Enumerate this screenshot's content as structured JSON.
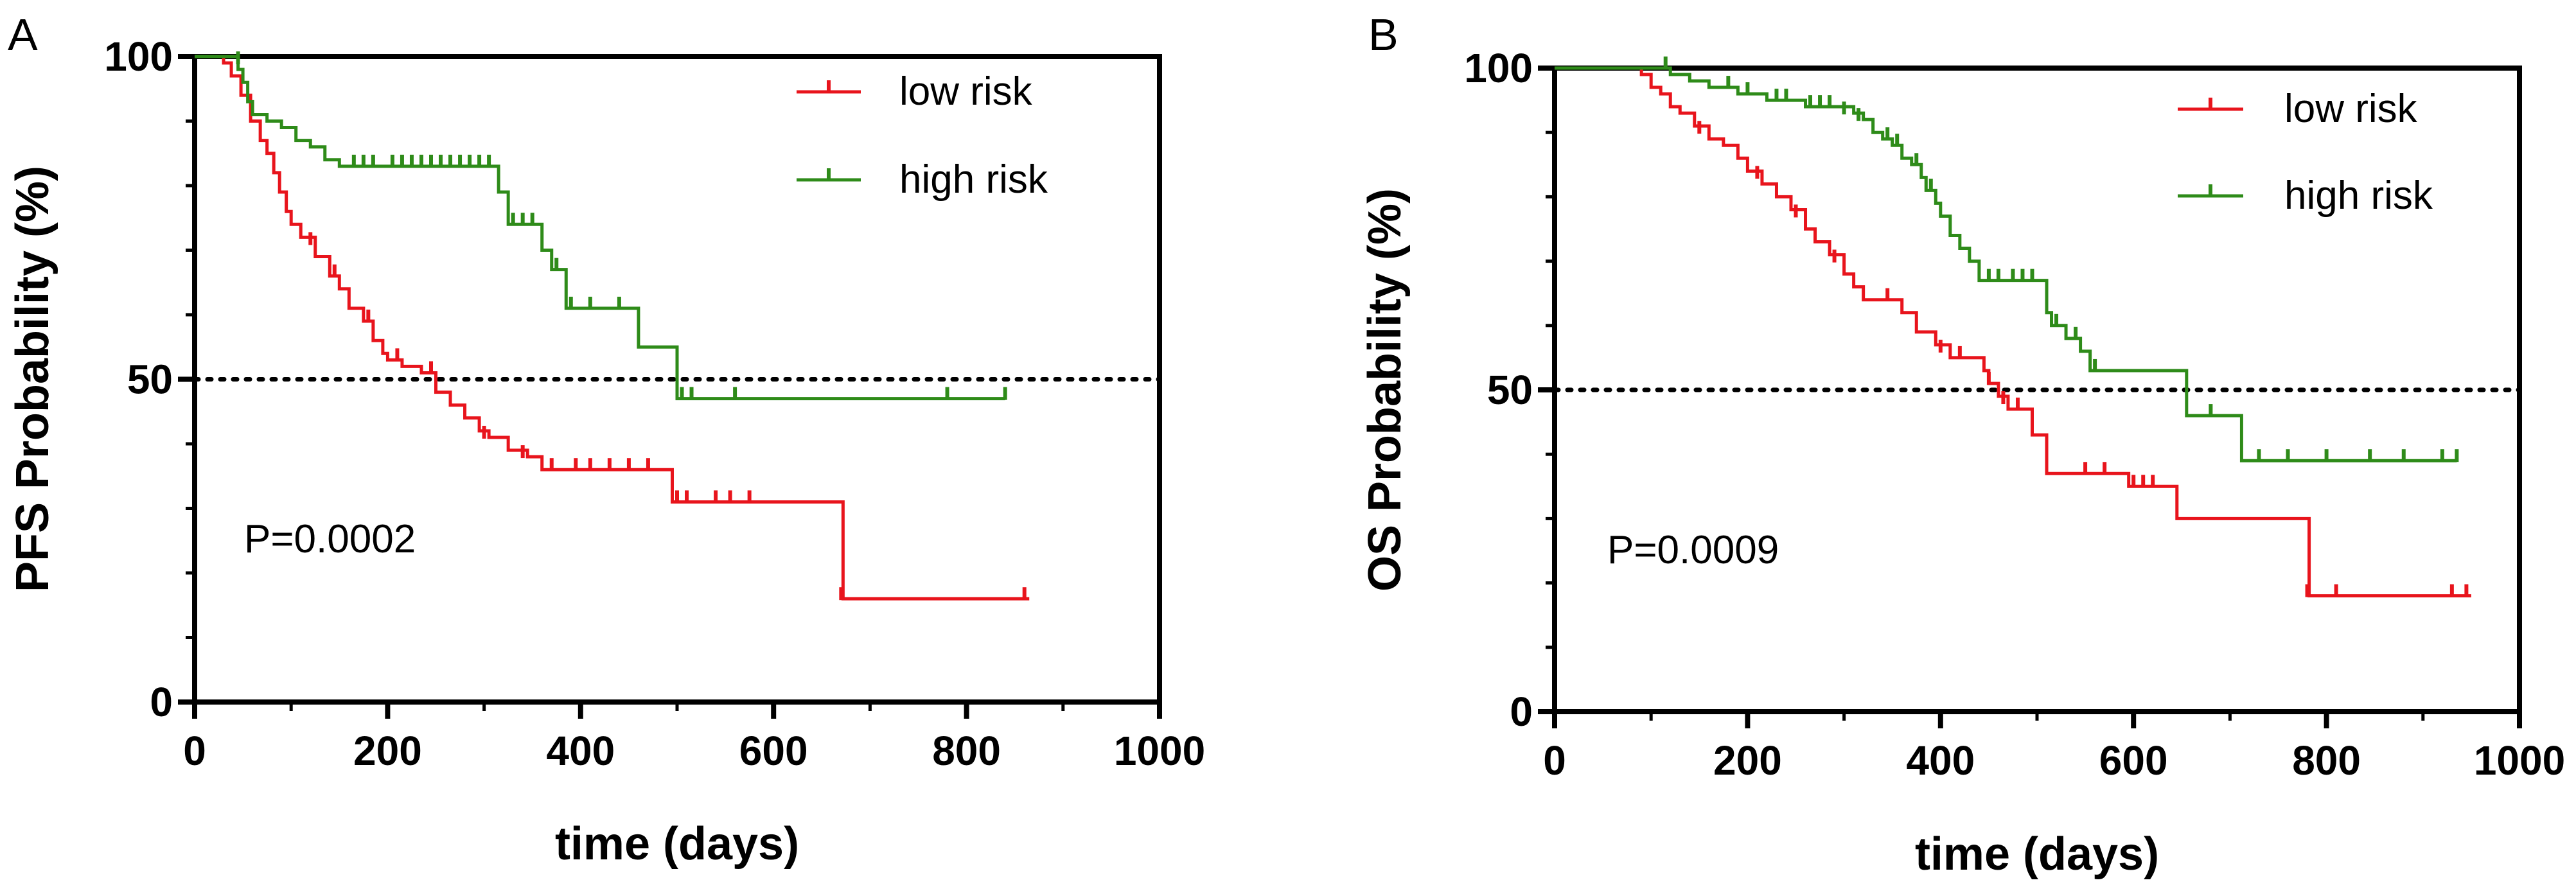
{
  "chart_data": [
    {
      "panel_label": "A",
      "type": "line",
      "subtype": "kaplan-meier",
      "title": "",
      "xlabel": "time (days)",
      "ylabel": "PFS Probability (%)",
      "xlim": [
        0,
        1000
      ],
      "ylim": [
        0,
        100
      ],
      "xticks": [
        "0",
        "200",
        "400",
        "600",
        "800",
        "1000"
      ],
      "yticks": [
        "0",
        "50",
        "100"
      ],
      "xtick_values": [
        0,
        200,
        400,
        600,
        800,
        1000
      ],
      "ytick_values": [
        0,
        50,
        100
      ],
      "reference_line": 50,
      "annotation": "P=0.0002",
      "legend_position": "top-right",
      "series": [
        {
          "name": "low risk",
          "color": "#e8141c",
          "steps": [
            [
              0,
              100
            ],
            [
              25,
              100
            ],
            [
              30,
              99
            ],
            [
              38,
              97
            ],
            [
              48,
              94
            ],
            [
              58,
              90
            ],
            [
              68,
              87
            ],
            [
              75,
              85
            ],
            [
              82,
              82
            ],
            [
              88,
              79
            ],
            [
              95,
              76
            ],
            [
              100,
              74
            ],
            [
              110,
              72
            ],
            [
              125,
              69
            ],
            [
              140,
              66
            ],
            [
              150,
              64
            ],
            [
              160,
              61
            ],
            [
              175,
              59
            ],
            [
              185,
              56
            ],
            [
              195,
              54
            ],
            [
              200,
              53
            ],
            [
              215,
              52
            ],
            [
              235,
              51
            ],
            [
              250,
              48
            ],
            [
              265,
              46
            ],
            [
              280,
              44
            ],
            [
              295,
              42
            ],
            [
              305,
              41
            ],
            [
              325,
              39
            ],
            [
              345,
              38
            ],
            [
              360,
              36
            ],
            [
              400,
              36
            ],
            [
              490,
              36
            ],
            [
              495,
              31
            ],
            [
              670,
              31
            ],
            [
              672,
              16
            ],
            [
              865,
              16
            ]
          ],
          "censors": [
            [
              120,
              71
            ],
            [
              145,
              66
            ],
            [
              180,
              59
            ],
            [
              210,
              53
            ],
            [
              245,
              51
            ],
            [
              300,
              41
            ],
            [
              340,
              38
            ],
            [
              370,
              36
            ],
            [
              395,
              36
            ],
            [
              410,
              36
            ],
            [
              430,
              36
            ],
            [
              450,
              36
            ],
            [
              470,
              36
            ],
            [
              500,
              31
            ],
            [
              510,
              31
            ],
            [
              540,
              31
            ],
            [
              555,
              31
            ],
            [
              575,
              31
            ],
            [
              670,
              16
            ],
            [
              860,
              16
            ]
          ]
        },
        {
          "name": "high risk",
          "color": "#2e8b19",
          "steps": [
            [
              0,
              100
            ],
            [
              40,
              100
            ],
            [
              45,
              98
            ],
            [
              50,
              96
            ],
            [
              55,
              93
            ],
            [
              60,
              91
            ],
            [
              75,
              90
            ],
            [
              90,
              89
            ],
            [
              105,
              87
            ],
            [
              120,
              86
            ],
            [
              135,
              84
            ],
            [
              150,
              83
            ],
            [
              200,
              83
            ],
            [
              260,
              83
            ],
            [
              310,
              83
            ],
            [
              315,
              79
            ],
            [
              325,
              74
            ],
            [
              355,
              74
            ],
            [
              360,
              70
            ],
            [
              370,
              67
            ],
            [
              385,
              61
            ],
            [
              455,
              61
            ],
            [
              460,
              55
            ],
            [
              495,
              55
            ],
            [
              500,
              47
            ],
            [
              840,
              47
            ]
          ],
          "censors": [
            [
              45,
              99
            ],
            [
              165,
              83
            ],
            [
              175,
              83
            ],
            [
              185,
              83
            ],
            [
              205,
              83
            ],
            [
              215,
              83
            ],
            [
              225,
              83
            ],
            [
              235,
              83
            ],
            [
              245,
              83
            ],
            [
              255,
              83
            ],
            [
              265,
              83
            ],
            [
              275,
              83
            ],
            [
              285,
              83
            ],
            [
              295,
              83
            ],
            [
              305,
              83
            ],
            [
              330,
              74
            ],
            [
              340,
              74
            ],
            [
              350,
              74
            ],
            [
              375,
              67
            ],
            [
              390,
              61
            ],
            [
              410,
              61
            ],
            [
              440,
              61
            ],
            [
              505,
              47
            ],
            [
              515,
              47
            ],
            [
              560,
              47
            ],
            [
              780,
              47
            ],
            [
              840,
              47
            ]
          ]
        }
      ]
    },
    {
      "panel_label": "B",
      "type": "line",
      "subtype": "kaplan-meier",
      "title": "",
      "xlabel": "time (days)",
      "ylabel": "OS Probability (%)",
      "xlim": [
        0,
        1000
      ],
      "ylim": [
        0,
        100
      ],
      "xticks": [
        "0",
        "200",
        "400",
        "600",
        "800",
        "1000"
      ],
      "yticks": [
        "0",
        "50",
        "100"
      ],
      "xtick_values": [
        0,
        200,
        400,
        600,
        800,
        1000
      ],
      "ytick_values": [
        0,
        50,
        100
      ],
      "reference_line": 50,
      "annotation": "P=0.0009",
      "legend_position": "top-right",
      "series": [
        {
          "name": "low risk",
          "color": "#e8141c",
          "steps": [
            [
              0,
              100
            ],
            [
              80,
              100
            ],
            [
              90,
              99
            ],
            [
              100,
              97
            ],
            [
              110,
              96
            ],
            [
              120,
              94
            ],
            [
              130,
              93
            ],
            [
              145,
              91
            ],
            [
              160,
              89
            ],
            [
              175,
              88
            ],
            [
              190,
              86
            ],
            [
              200,
              84
            ],
            [
              215,
              82
            ],
            [
              230,
              80
            ],
            [
              245,
              78
            ],
            [
              260,
              75
            ],
            [
              270,
              73
            ],
            [
              285,
              71
            ],
            [
              300,
              68
            ],
            [
              310,
              66
            ],
            [
              320,
              64
            ],
            [
              350,
              64
            ],
            [
              360,
              62
            ],
            [
              375,
              59
            ],
            [
              395,
              57
            ],
            [
              410,
              55
            ],
            [
              440,
              55
            ],
            [
              445,
              53
            ],
            [
              450,
              51
            ],
            [
              460,
              49
            ],
            [
              470,
              47
            ],
            [
              490,
              47
            ],
            [
              495,
              43
            ],
            [
              510,
              37
            ],
            [
              590,
              37
            ],
            [
              595,
              35
            ],
            [
              640,
              35
            ],
            [
              645,
              30
            ],
            [
              780,
              30
            ],
            [
              782,
              18
            ],
            [
              950,
              18
            ]
          ],
          "censors": [
            [
              150,
              90
            ],
            [
              210,
              83
            ],
            [
              250,
              77
            ],
            [
              290,
              70
            ],
            [
              345,
              64
            ],
            [
              400,
              56
            ],
            [
              420,
              55
            ],
            [
              450,
              51
            ],
            [
              465,
              48
            ],
            [
              480,
              47
            ],
            [
              550,
              37
            ],
            [
              570,
              37
            ],
            [
              600,
              35
            ],
            [
              610,
              35
            ],
            [
              620,
              35
            ],
            [
              780,
              18
            ],
            [
              810,
              18
            ],
            [
              930,
              18
            ],
            [
              945,
              18
            ]
          ]
        },
        {
          "name": "high risk",
          "color": "#2e8b19",
          "steps": [
            [
              0,
              100
            ],
            [
              110,
              100
            ],
            [
              120,
              99
            ],
            [
              140,
              98
            ],
            [
              160,
              97
            ],
            [
              190,
              96
            ],
            [
              220,
              95
            ],
            [
              260,
              94
            ],
            [
              310,
              93
            ],
            [
              320,
              92
            ],
            [
              330,
              90
            ],
            [
              340,
              89
            ],
            [
              350,
              88
            ],
            [
              360,
              86
            ],
            [
              370,
              85
            ],
            [
              380,
              83
            ],
            [
              385,
              81
            ],
            [
              395,
              79
            ],
            [
              400,
              77
            ],
            [
              410,
              74
            ],
            [
              420,
              72
            ],
            [
              430,
              70
            ],
            [
              440,
              67
            ],
            [
              505,
              67
            ],
            [
              510,
              62
            ],
            [
              515,
              60
            ],
            [
              530,
              58
            ],
            [
              545,
              56
            ],
            [
              555,
              53
            ],
            [
              650,
              53
            ],
            [
              655,
              46
            ],
            [
              710,
              46
            ],
            [
              712,
              39
            ],
            [
              935,
              39
            ]
          ],
          "censors": [
            [
              115,
              100
            ],
            [
              180,
              97
            ],
            [
              200,
              96
            ],
            [
              230,
              95
            ],
            [
              240,
              95
            ],
            [
              265,
              94
            ],
            [
              275,
              94
            ],
            [
              285,
              94
            ],
            [
              300,
              93
            ],
            [
              315,
              92
            ],
            [
              345,
              89
            ],
            [
              355,
              88
            ],
            [
              375,
              85
            ],
            [
              390,
              81
            ],
            [
              450,
              67
            ],
            [
              460,
              67
            ],
            [
              475,
              67
            ],
            [
              485,
              67
            ],
            [
              495,
              67
            ],
            [
              520,
              60
            ],
            [
              540,
              58
            ],
            [
              560,
              53
            ],
            [
              680,
              46
            ],
            [
              730,
              39
            ],
            [
              760,
              39
            ],
            [
              800,
              39
            ],
            [
              845,
              39
            ],
            [
              880,
              39
            ],
            [
              920,
              39
            ],
            [
              935,
              39
            ]
          ]
        }
      ]
    }
  ]
}
